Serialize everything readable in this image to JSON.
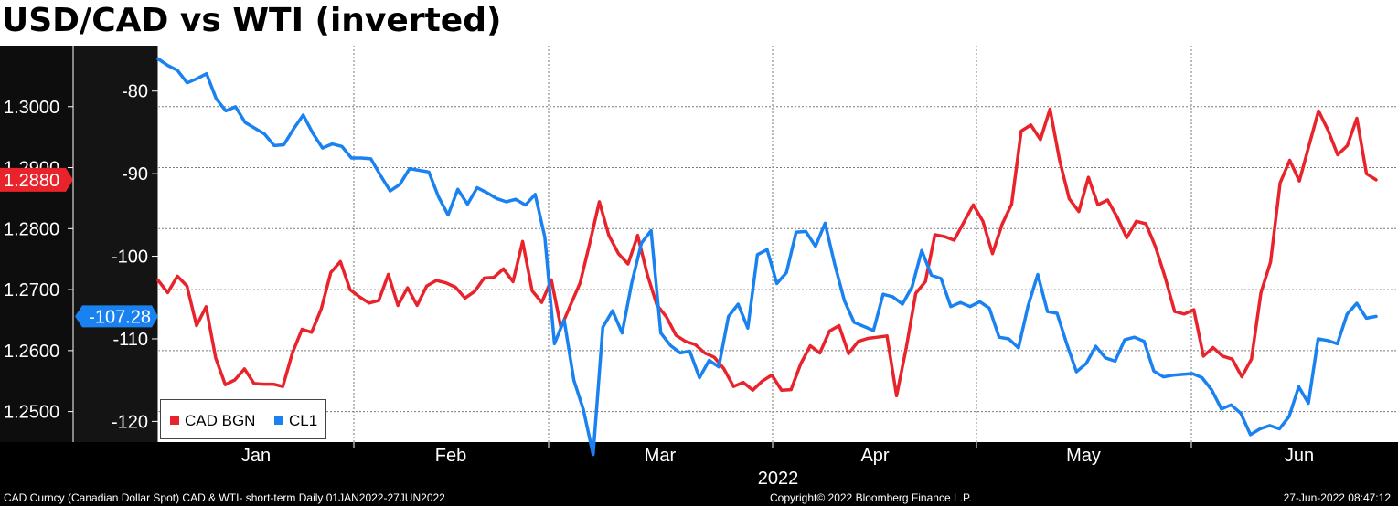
{
  "header": {
    "title": "USD/CAD vs WTI (inverted)"
  },
  "footer": {
    "left": "CAD Curncy (Canadian Dollar Spot) CAD & WTI- short-term  Daily 01JAN2022-27JUN2022",
    "middle": "Copyright© 2022 Bloomberg Finance L.P.",
    "right": "27-Jun-2022 08:47:12"
  },
  "colors": {
    "cad": "#e8232b",
    "cl1": "#1a82f0"
  },
  "chart_data": {
    "type": "line",
    "title": "USD/CAD vs WTI (inverted)",
    "xlabel": "2022",
    "x_ticks": [
      "Jan",
      "Feb",
      "Mar",
      "Apr",
      "May",
      "Jun"
    ],
    "left_axis": {
      "ticks": [
        "1.3000",
        "1.2900",
        "1.2800",
        "1.2700",
        "1.2600",
        "1.2500"
      ],
      "ylim": [
        1.245,
        1.31
      ]
    },
    "right_axis": {
      "ticks": [
        "-80",
        "-90",
        "-100",
        "-110",
        "-120"
      ],
      "ylim": [
        -122.5,
        -74.5
      ],
      "inverted_series": true
    },
    "last_labels": {
      "cad": "1.2880",
      "cl1": "-107.28"
    },
    "legend_position": "bottom-left",
    "grid": true,
    "series": [
      {
        "name": "CAD BGN",
        "axis": "left",
        "values": [
          1.2715,
          1.2695,
          1.2722,
          1.2706,
          1.2641,
          1.2672,
          1.2588,
          1.2544,
          1.2552,
          1.257,
          1.2546,
          1.2545,
          1.2545,
          1.2541,
          1.2596,
          1.2635,
          1.263,
          1.2668,
          1.2728,
          1.2746,
          1.27,
          1.2688,
          1.2678,
          1.2682,
          1.2725,
          1.2674,
          1.2703,
          1.2674,
          1.2706,
          1.2715,
          1.2711,
          1.2704,
          1.2686,
          1.2697,
          1.2719,
          1.272,
          1.2734,
          1.2713,
          1.2779,
          1.2698,
          1.2679,
          1.2716,
          1.2638,
          1.2675,
          1.2711,
          1.2776,
          1.2844,
          1.2789,
          1.2759,
          1.2742,
          1.2789,
          1.2725,
          1.2675,
          1.2655,
          1.2625,
          1.2615,
          1.261,
          1.2596,
          1.2589,
          1.257,
          1.2541,
          1.2548,
          1.2535,
          1.255,
          1.256,
          1.2535,
          1.2536,
          1.2578,
          1.2608,
          1.2596,
          1.2632,
          1.2641,
          1.2595,
          1.2615,
          1.262,
          1.2622,
          1.2624,
          1.2526,
          1.2604,
          1.2694,
          1.2713,
          1.279,
          1.2787,
          1.2781,
          1.281,
          1.2839,
          1.2812,
          1.2759,
          1.2807,
          1.284,
          1.296,
          1.297,
          1.2946,
          1.2996,
          1.2912,
          1.2849,
          1.2828,
          1.2884,
          1.2839,
          1.2847,
          1.2819,
          1.2785,
          1.2812,
          1.2808,
          1.277,
          1.272,
          1.2664,
          1.266,
          1.2667,
          1.2591,
          1.2605,
          1.2591,
          1.2586,
          1.2557,
          1.2586,
          1.2695,
          1.2745,
          1.2875,
          1.2912,
          1.2878,
          1.2936,
          1.2993,
          1.2961,
          1.2921,
          1.2936,
          1.2981,
          1.289,
          1.288
        ]
      },
      {
        "name": "CL1",
        "axis": "right",
        "inverted": true,
        "values": [
          -76.1,
          -76.9,
          -77.5,
          -79.0,
          -78.5,
          -77.9,
          -80.9,
          -82.4,
          -81.9,
          -83.8,
          -84.5,
          -85.2,
          -86.6,
          -86.5,
          -84.6,
          -82.9,
          -85.1,
          -86.9,
          -86.4,
          -86.7,
          -88.1,
          -88.1,
          -88.2,
          -90.2,
          -92.1,
          -91.3,
          -89.4,
          -89.6,
          -89.8,
          -92.8,
          -95.0,
          -91.9,
          -93.7,
          -91.7,
          -92.3,
          -93.0,
          -93.4,
          -93.1,
          -93.8,
          -92.5,
          -97.7,
          -110.6,
          -107.7,
          -115.0,
          -118.6,
          -124.0,
          -108.6,
          -106.6,
          -109.3,
          -103.2,
          -98.4,
          -96.9,
          -109.3,
          -110.8,
          -111.7,
          -111.5,
          -114.7,
          -112.6,
          -113.4,
          -107.3,
          -105.8,
          -108.7,
          -99.8,
          -99.2,
          -103.3,
          -102.0,
          -97.1,
          -97.0,
          -98.8,
          -96.0,
          -101.0,
          -105.4,
          -108.0,
          -108.5,
          -109.0,
          -104.6,
          -104.9,
          -105.8,
          -103.7,
          -99.3,
          -102.3,
          -102.7,
          -106.1,
          -105.6,
          -106.1,
          -105.5,
          -106.3,
          -109.8,
          -110.0,
          -111.1,
          -106.0,
          -102.2,
          -106.7,
          -106.9,
          -110.6,
          -114.0,
          -113.0,
          -110.9,
          -112.3,
          -112.7,
          -110.1,
          -109.8,
          -110.3,
          -113.9,
          -114.6,
          -114.4,
          -114.3,
          -114.2,
          -114.7,
          -116.2,
          -118.5,
          -118.0,
          -119.0,
          -121.6,
          -120.9,
          -120.5,
          -120.9,
          -119.4,
          -115.8,
          -117.8,
          -110.0,
          -110.2,
          -110.6,
          -107.0,
          -105.7,
          -107.5,
          -107.28
        ]
      }
    ]
  }
}
